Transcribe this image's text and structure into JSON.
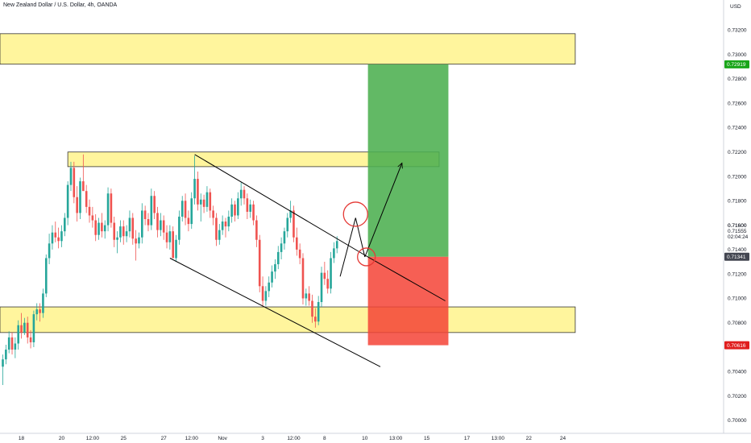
{
  "header": {
    "symbol_title": "New Zealand Dollar / U.S. Dollar, 4h, OANDA",
    "currency": "USD"
  },
  "colors": {
    "bull": "#26a69a",
    "bear": "#ef5350",
    "zone_fill": "#fff59d",
    "zone_border": "#333333",
    "target_fill": "#4caf50",
    "stop_fill": "#f44336",
    "target_tag": "#1aa51a",
    "stop_tag": "#e01e1e",
    "current_tag": "#434651",
    "circle": "#e53935",
    "drawing": "#000000"
  },
  "chart_data": {
    "type": "candlestick",
    "title": "New Zealand Dollar / U.S. Dollar, 4h, OANDA",
    "ylim": [
      0.6992,
      0.734
    ],
    "y_ticks": [
      "0.70000",
      "0.70200",
      "0.70400",
      "0.70600",
      "0.70800",
      "0.71000",
      "0.71200",
      "0.71400",
      "0.71600",
      "0.71800",
      "0.72000",
      "0.72200",
      "0.72400",
      "0.72600",
      "0.72800",
      "0.73000",
      "0.73200"
    ],
    "y_tick_values": [
      0.7,
      0.702,
      0.704,
      0.706,
      0.708,
      0.71,
      0.712,
      0.714,
      0.716,
      0.718,
      0.72,
      0.722,
      0.724,
      0.726,
      0.728,
      0.73,
      0.732
    ],
    "x_ticks": [
      "18",
      "20",
      "12:00",
      "25",
      "27",
      "12:00",
      "Nov",
      "3",
      "12:00",
      "8",
      "10",
      "13:00",
      "15",
      "17",
      "13:00",
      "22",
      "24"
    ],
    "x_tick_bars": [
      6,
      19,
      29,
      39,
      52,
      61,
      71,
      84,
      94,
      104,
      117,
      127,
      137,
      150,
      160,
      170,
      181
    ],
    "price_labels": {
      "target": "0.72919",
      "last": "0.71600",
      "close": "0.71555",
      "countdown": "02:04:24",
      "entry": "0.71341",
      "stop": "0.70616"
    },
    "price_label_values": {
      "target": 0.72919,
      "last": 0.716,
      "close": 0.71555,
      "entry": 0.71341,
      "stop": 0.70616
    },
    "zones": [
      {
        "name": "upper-resistance-zone",
        "from_bar": -1,
        "to_bar": 185,
        "low": 0.7292,
        "high": 0.7317
      },
      {
        "name": "mid-resistance-zone",
        "from_bar": 21,
        "to_bar": 141,
        "low": 0.7208,
        "high": 0.722
      },
      {
        "name": "support-zone",
        "from_bar": -1,
        "to_bar": 185,
        "low": 0.7072,
        "high": 0.7093
      }
    ],
    "position": {
      "from_bar": 118,
      "to_bar": 144,
      "entry": 0.71341,
      "target": 0.72919,
      "stop": 0.70616
    },
    "lines": [
      {
        "name": "channel-upper-line",
        "points": [
          [
            62,
            0.7218
          ],
          [
            118,
            0.7134
          ],
          [
            143,
            0.7098
          ]
        ]
      },
      {
        "name": "channel-lower-line",
        "points": [
          [
            54,
            0.7133
          ],
          [
            122,
            0.7044
          ]
        ]
      },
      {
        "name": "projection-up-line",
        "points": [
          [
            109,
            0.7118
          ],
          [
            114,
            0.7166
          ]
        ]
      },
      {
        "name": "projection-down-line",
        "points": [
          [
            114,
            0.7166
          ],
          [
            117,
            0.7134
          ]
        ]
      },
      {
        "name": "target-projection-line",
        "points": [
          [
            117,
            0.7134
          ],
          [
            129,
            0.7211
          ]
        ]
      }
    ],
    "circles": [
      {
        "name": "reversal-circle",
        "bar": 114,
        "price": 0.7169
      },
      {
        "name": "entry-circle",
        "bar": 117.5,
        "price": 0.7134
      }
    ],
    "candles": [
      [
        0.7044,
        0.7054,
        0.7029,
        0.705
      ],
      [
        0.705,
        0.7062,
        0.7046,
        0.7058
      ],
      [
        0.7058,
        0.7073,
        0.7055,
        0.7068
      ],
      [
        0.7068,
        0.7072,
        0.7054,
        0.7058
      ],
      [
        0.7058,
        0.7068,
        0.7051,
        0.7063
      ],
      [
        0.7063,
        0.7082,
        0.7058,
        0.7078
      ],
      [
        0.7078,
        0.7088,
        0.7067,
        0.7072
      ],
      [
        0.7072,
        0.7084,
        0.707,
        0.708
      ],
      [
        0.708,
        0.7085,
        0.7063,
        0.7068
      ],
      [
        0.7068,
        0.7074,
        0.7059,
        0.7064
      ],
      [
        0.7064,
        0.709,
        0.706,
        0.7087
      ],
      [
        0.7087,
        0.7096,
        0.7082,
        0.7091
      ],
      [
        0.7091,
        0.7096,
        0.7081,
        0.7088
      ],
      [
        0.7088,
        0.7108,
        0.7084,
        0.7104
      ],
      [
        0.7104,
        0.7136,
        0.7101,
        0.7133
      ],
      [
        0.7133,
        0.7153,
        0.7128,
        0.7145
      ],
      [
        0.7145,
        0.716,
        0.714,
        0.7154
      ],
      [
        0.7154,
        0.7163,
        0.7146,
        0.715
      ],
      [
        0.715,
        0.7158,
        0.7141,
        0.7147
      ],
      [
        0.7147,
        0.716,
        0.7142,
        0.7155
      ],
      [
        0.7155,
        0.717,
        0.7151,
        0.7166
      ],
      [
        0.7166,
        0.7196,
        0.716,
        0.7193
      ],
      [
        0.7193,
        0.7212,
        0.7188,
        0.7207
      ],
      [
        0.7207,
        0.7212,
        0.7178,
        0.7183
      ],
      [
        0.7183,
        0.7192,
        0.7163,
        0.717
      ],
      [
        0.717,
        0.7199,
        0.7165,
        0.7196
      ],
      [
        0.7196,
        0.7218,
        0.719,
        0.7188
      ],
      [
        0.7188,
        0.7193,
        0.717,
        0.7175
      ],
      [
        0.7175,
        0.7181,
        0.7162,
        0.7168
      ],
      [
        0.7168,
        0.7175,
        0.7158,
        0.7164
      ],
      [
        0.7164,
        0.7169,
        0.7147,
        0.7152
      ],
      [
        0.7152,
        0.7166,
        0.7148,
        0.7162
      ],
      [
        0.7162,
        0.717,
        0.715,
        0.7155
      ],
      [
        0.7155,
        0.7164,
        0.7149,
        0.716
      ],
      [
        0.716,
        0.7191,
        0.7155,
        0.7186
      ],
      [
        0.7186,
        0.719,
        0.7158,
        0.7162
      ],
      [
        0.7162,
        0.7167,
        0.7142,
        0.7148
      ],
      [
        0.7148,
        0.7155,
        0.7137,
        0.715
      ],
      [
        0.715,
        0.7164,
        0.7146,
        0.7159
      ],
      [
        0.7159,
        0.7164,
        0.7144,
        0.7151
      ],
      [
        0.7151,
        0.716,
        0.7146,
        0.7155
      ],
      [
        0.7155,
        0.7172,
        0.715,
        0.7166
      ],
      [
        0.7166,
        0.717,
        0.7144,
        0.7149
      ],
      [
        0.7149,
        0.7156,
        0.7131,
        0.7145
      ],
      [
        0.7145,
        0.7154,
        0.7141,
        0.715
      ],
      [
        0.715,
        0.7178,
        0.7145,
        0.7172
      ],
      [
        0.7172,
        0.7176,
        0.716,
        0.7165
      ],
      [
        0.7165,
        0.717,
        0.7155,
        0.716
      ],
      [
        0.716,
        0.719,
        0.7156,
        0.7184
      ],
      [
        0.7184,
        0.7188,
        0.7165,
        0.717
      ],
      [
        0.717,
        0.7175,
        0.715,
        0.7156
      ],
      [
        0.7156,
        0.717,
        0.7151,
        0.7164
      ],
      [
        0.7164,
        0.7168,
        0.7148,
        0.7154
      ],
      [
        0.7154,
        0.716,
        0.7141,
        0.7146
      ],
      [
        0.7146,
        0.716,
        0.714,
        0.7155
      ],
      [
        0.7155,
        0.7159,
        0.7133,
        0.7133
      ],
      [
        0.7133,
        0.7152,
        0.713,
        0.7148
      ],
      [
        0.7148,
        0.7172,
        0.7144,
        0.7167
      ],
      [
        0.7167,
        0.7184,
        0.7163,
        0.718
      ],
      [
        0.718,
        0.7186,
        0.716,
        0.7166
      ],
      [
        0.7166,
        0.7172,
        0.7155,
        0.7161
      ],
      [
        0.7161,
        0.7187,
        0.7157,
        0.7182
      ],
      [
        0.7182,
        0.7217,
        0.7177,
        0.7198
      ],
      [
        0.7198,
        0.7204,
        0.7172,
        0.7177
      ],
      [
        0.7177,
        0.7186,
        0.7163,
        0.7181
      ],
      [
        0.7181,
        0.7185,
        0.717,
        0.7175
      ],
      [
        0.7175,
        0.7192,
        0.7171,
        0.7187
      ],
      [
        0.7187,
        0.719,
        0.7166,
        0.7172
      ],
      [
        0.7172,
        0.7176,
        0.716,
        0.7166
      ],
      [
        0.7166,
        0.717,
        0.7143,
        0.7148
      ],
      [
        0.7148,
        0.7161,
        0.7144,
        0.7156
      ],
      [
        0.7156,
        0.7168,
        0.7152,
        0.7163
      ],
      [
        0.7163,
        0.7166,
        0.715,
        0.7159
      ],
      [
        0.7159,
        0.7172,
        0.7155,
        0.7167
      ],
      [
        0.7167,
        0.7182,
        0.7162,
        0.7177
      ],
      [
        0.7177,
        0.718,
        0.7163,
        0.7168
      ],
      [
        0.7168,
        0.7187,
        0.7165,
        0.7182
      ],
      [
        0.7182,
        0.7195,
        0.7176,
        0.7189
      ],
      [
        0.7189,
        0.7192,
        0.7177,
        0.7182
      ],
      [
        0.7182,
        0.7186,
        0.7165,
        0.7171
      ],
      [
        0.7171,
        0.7181,
        0.7166,
        0.7177
      ],
      [
        0.7177,
        0.718,
        0.716,
        0.7164
      ],
      [
        0.7164,
        0.7168,
        0.7142,
        0.7148
      ],
      [
        0.7148,
        0.7152,
        0.7105,
        0.711
      ],
      [
        0.711,
        0.7118,
        0.7094,
        0.7098
      ],
      [
        0.7098,
        0.711,
        0.7094,
        0.7106
      ],
      [
        0.7106,
        0.7118,
        0.7101,
        0.7113
      ],
      [
        0.7113,
        0.7127,
        0.7109,
        0.7122
      ],
      [
        0.7122,
        0.7132,
        0.7116,
        0.7128
      ],
      [
        0.7128,
        0.7143,
        0.7124,
        0.7138
      ],
      [
        0.7138,
        0.715,
        0.7132,
        0.7145
      ],
      [
        0.7145,
        0.7158,
        0.714,
        0.7155
      ],
      [
        0.7155,
        0.717,
        0.715,
        0.7166
      ],
      [
        0.7166,
        0.718,
        0.7162,
        0.7172
      ],
      [
        0.7172,
        0.7176,
        0.7146,
        0.715
      ],
      [
        0.715,
        0.7158,
        0.7135,
        0.714
      ],
      [
        0.714,
        0.7145,
        0.7128,
        0.7133
      ],
      [
        0.7133,
        0.7137,
        0.7095,
        0.71
      ],
      [
        0.71,
        0.7108,
        0.7094,
        0.7104
      ],
      [
        0.7104,
        0.711,
        0.7094,
        0.7098
      ],
      [
        0.7098,
        0.7103,
        0.708,
        0.7085
      ],
      [
        0.7085,
        0.7092,
        0.7076,
        0.7081
      ],
      [
        0.7081,
        0.7102,
        0.7078,
        0.7097
      ],
      [
        0.7097,
        0.7126,
        0.7093,
        0.7121
      ],
      [
        0.7121,
        0.713,
        0.7111,
        0.7116
      ],
      [
        0.7116,
        0.7123,
        0.7104,
        0.7108
      ],
      [
        0.7108,
        0.7138,
        0.7104,
        0.7133
      ],
      [
        0.7133,
        0.7146,
        0.7129,
        0.7141
      ],
      [
        0.7141,
        0.7151,
        0.7137,
        0.7147
      ]
    ]
  }
}
